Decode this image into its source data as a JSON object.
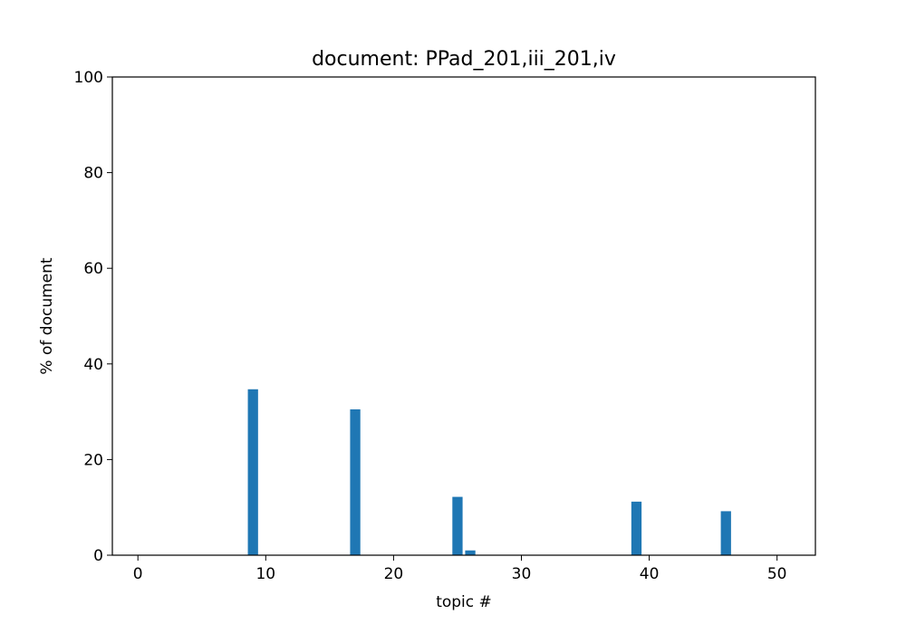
{
  "chart_data": {
    "type": "bar",
    "title": "document: PPad_201,iii_201,iv",
    "xlabel": "topic #",
    "ylabel": "% of document",
    "xlim": [
      -2,
      53
    ],
    "ylim": [
      0,
      100
    ],
    "xticks": [
      0,
      10,
      20,
      30,
      40,
      50
    ],
    "yticks": [
      0,
      20,
      40,
      60,
      80,
      100
    ],
    "grid": false,
    "bar_color": "#1f77b4",
    "x": [
      9,
      17,
      25,
      26,
      39,
      46
    ],
    "values": [
      34.7,
      30.5,
      12.2,
      1.0,
      11.2,
      9.2
    ]
  }
}
